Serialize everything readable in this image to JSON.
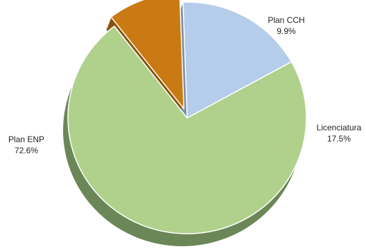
{
  "chart_data": {
    "type": "pie",
    "style": "3d-exploded",
    "slices": [
      {
        "label": "Plan ENP",
        "percent": "72.6%",
        "value": 72.6,
        "color": "#b0d18c",
        "side_color": "#6b8757"
      },
      {
        "label": "Plan CCH",
        "percent": "9.9%",
        "value": 9.9,
        "color": "#c97a12",
        "side_color": "#8a520a"
      },
      {
        "label": "Licenciatura",
        "percent": "17.5%",
        "value": 17.5,
        "color": "#b5cdea",
        "side_color": "#7f8fa6"
      }
    ],
    "exploded_slice": "Plan CCH",
    "start_angle_deg": 29,
    "legend": "none"
  }
}
